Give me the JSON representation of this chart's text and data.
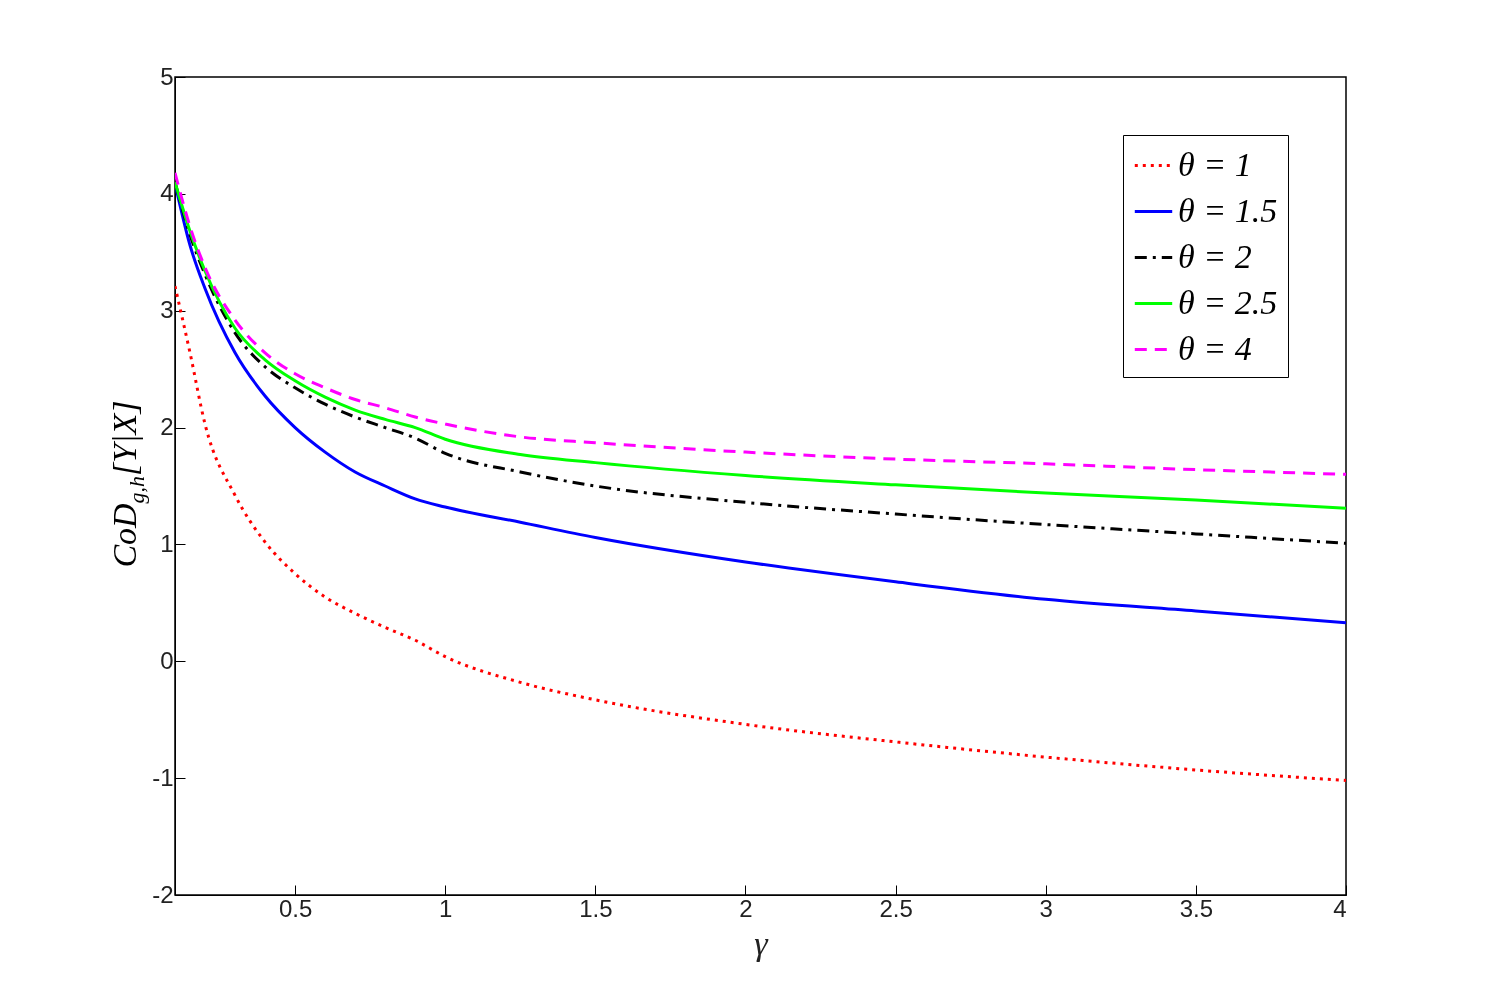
{
  "chart_data": {
    "type": "line",
    "xlabel": "γ",
    "ylabel": "CoD$_{g,h}$[Y|X]",
    "x": [
      0.1,
      0.15,
      0.2,
      0.3,
      0.4,
      0.5,
      0.6,
      0.7,
      0.8,
      0.9,
      1,
      1.25,
      1.5,
      2,
      2.5,
      3,
      3.5,
      4
    ],
    "series": [
      {
        "name": "θ = 1",
        "color": "#ff0000",
        "line_style": "dotted",
        "values": [
          3.21,
          2.64,
          2.03,
          1.42,
          1.02,
          0.75,
          0.55,
          0.41,
          0.29,
          0.18,
          0.04,
          -0.18,
          -0.33,
          -0.54,
          -0.69,
          -0.82,
          -0.93,
          -1.02
        ]
      },
      {
        "name": "θ = 1.5",
        "color": "#0000ff",
        "line_style": "solid",
        "values": [
          4.09,
          3.56,
          3.19,
          2.64,
          2.27,
          2.0,
          1.79,
          1.62,
          1.5,
          1.39,
          1.32,
          1.19,
          1.06,
          0.85,
          0.68,
          0.53,
          0.43,
          0.33
        ]
      },
      {
        "name": "θ = 2",
        "color": "#000000",
        "line_style": "dashdot",
        "values": [
          4.1,
          3.65,
          3.31,
          2.81,
          2.52,
          2.34,
          2.2,
          2.09,
          2.0,
          1.91,
          1.78,
          1.62,
          1.5,
          1.36,
          1.26,
          1.17,
          1.09,
          1.01
        ]
      },
      {
        "name": "θ = 2.5",
        "color": "#00ff00",
        "line_style": "solid",
        "values": [
          4.1,
          3.68,
          3.34,
          2.85,
          2.58,
          2.4,
          2.26,
          2.15,
          2.07,
          2.0,
          1.9,
          1.77,
          1.7,
          1.59,
          1.51,
          1.44,
          1.38,
          1.31
        ]
      },
      {
        "name": "θ = 4",
        "color": "#ff00ff",
        "line_style": "dashed",
        "values": [
          4.18,
          3.72,
          3.37,
          2.92,
          2.64,
          2.46,
          2.34,
          2.24,
          2.17,
          2.09,
          2.03,
          1.92,
          1.87,
          1.79,
          1.73,
          1.69,
          1.64,
          1.6
        ]
      }
    ],
    "xlim": [
      0.1,
      4
    ],
    "xticks": [
      0.5,
      1,
      1.5,
      2,
      2.5,
      3,
      3.5,
      4
    ],
    "ylim": [
      -2,
      5
    ],
    "yticks": [
      -2,
      -1,
      0,
      1,
      2,
      3,
      4,
      5
    ],
    "grid": false,
    "legend": "top right"
  }
}
